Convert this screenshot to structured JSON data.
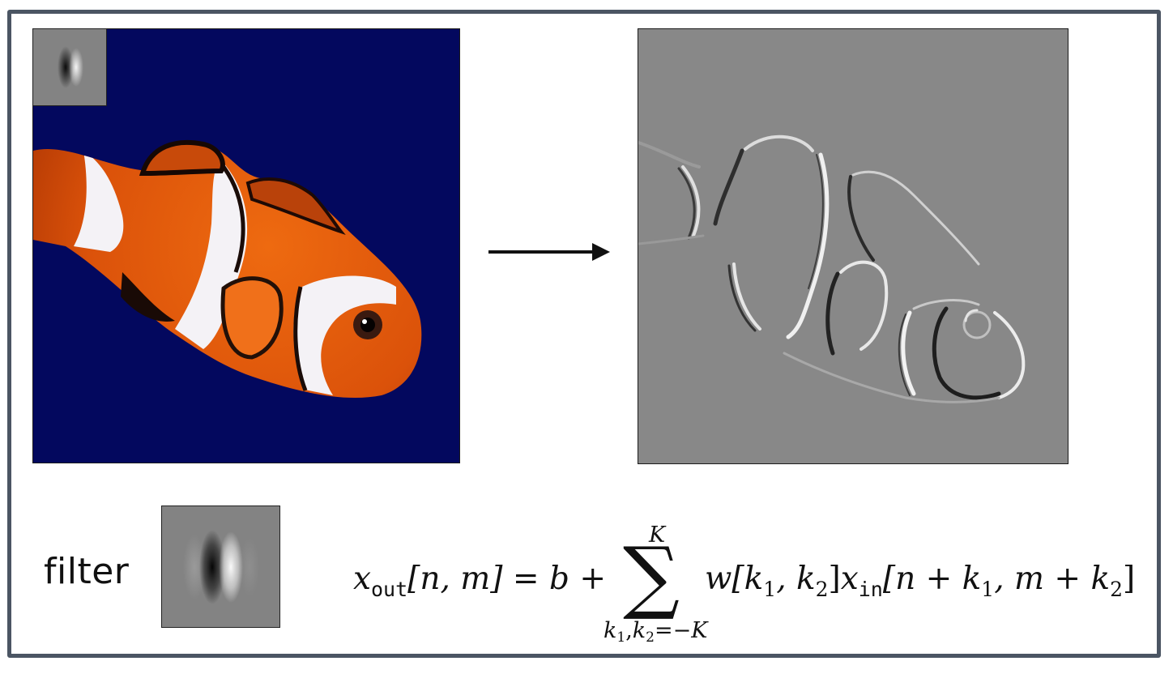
{
  "figure": {
    "filter_label": "filter",
    "input_image": "clownfish photo",
    "output_image": "filter response map",
    "colors": {
      "frame_border": "#4b5563",
      "ocean_blue": "#03085e",
      "fish_orange": "#e25a0c",
      "stripe_white": "#f4f2f6",
      "response_gray": "#888888"
    }
  },
  "equation": {
    "lhs_var": "x",
    "lhs_sub": "out",
    "lhs_index": "[n, m]",
    "equals": "=",
    "bias": "b",
    "plus": "+",
    "sum_symbol": "∑",
    "sum_upper": "K",
    "sum_lower_k1": "k",
    "sum_lower_sub1": "1",
    "sum_lower_comma": ",",
    "sum_lower_k2": "k",
    "sum_lower_sub2": "2",
    "sum_lower_rest": "=−K",
    "weight": "w[k",
    "weight_sub1": "1",
    "weight_mid": ", k",
    "weight_sub2": "2",
    "weight_close": "]",
    "input_var": "x",
    "input_sub": "in",
    "input_index_a": "[n + k",
    "input_index_sub1": "1",
    "input_index_b": ", m + k",
    "input_index_sub2": "2",
    "input_index_close": "]"
  }
}
